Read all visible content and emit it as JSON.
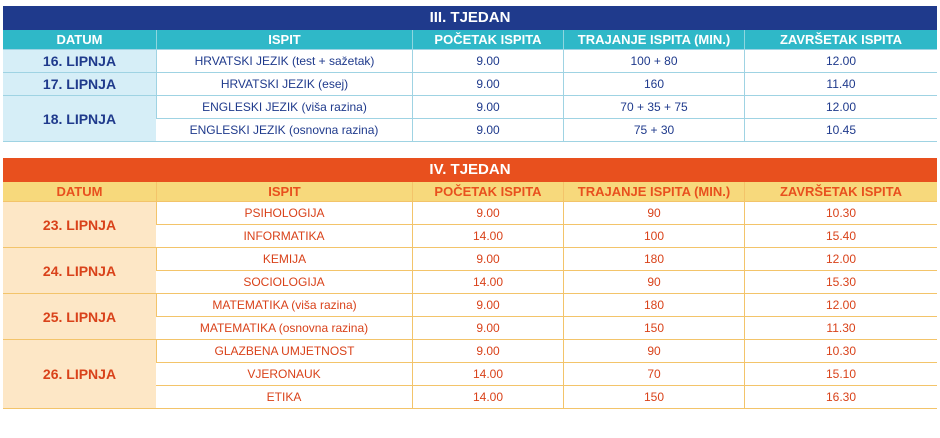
{
  "columns": [
    "DATUM",
    "ISPIT",
    "POČETAK ISPITA",
    "TRAJANJE ISPITA (MIN.)",
    "ZAVRŠETAK ISPITA"
  ],
  "week3": {
    "title": "III. TJEDAN",
    "groups": [
      {
        "date": "16. LIPNJA",
        "rows": [
          {
            "exam": "HRVATSKI JEZIK (test + sažetak)",
            "start": "9.00",
            "duration": "100 + 80",
            "end": "12.00"
          }
        ]
      },
      {
        "date": "17. LIPNJA",
        "rows": [
          {
            "exam": "HRVATSKI JEZIK (esej)",
            "start": "9.00",
            "duration": "160",
            "end": "11.40"
          }
        ]
      },
      {
        "date": "18. LIPNJA",
        "rows": [
          {
            "exam": "ENGLESKI JEZIK (viša razina)",
            "start": "9.00",
            "duration": "70 + 35 + 75",
            "end": "12.00"
          },
          {
            "exam": "ENGLESKI JEZIK (osnovna razina)",
            "start": "9.00",
            "duration": "75 + 30",
            "end": "10.45"
          }
        ]
      }
    ]
  },
  "week4": {
    "title": "IV. TJEDAN",
    "groups": [
      {
        "date": "23. LIPNJA",
        "rows": [
          {
            "exam": "PSIHOLOGIJA",
            "start": "9.00",
            "duration": "90",
            "end": "10.30"
          },
          {
            "exam": "INFORMATIKA",
            "start": "14.00",
            "duration": "100",
            "end": "15.40"
          }
        ]
      },
      {
        "date": "24. LIPNJA",
        "rows": [
          {
            "exam": "KEMIJA",
            "start": "9.00",
            "duration": "180",
            "end": "12.00"
          },
          {
            "exam": "SOCIOLOGIJA",
            "start": "14.00",
            "duration": "90",
            "end": "15.30"
          }
        ]
      },
      {
        "date": "25. LIPNJA",
        "rows": [
          {
            "exam": "MATEMATIKA (viša razina)",
            "start": "9.00",
            "duration": "180",
            "end": "12.00"
          },
          {
            "exam": "MATEMATIKA (osnovna razina)",
            "start": "9.00",
            "duration": "150",
            "end": "11.30"
          }
        ]
      },
      {
        "date": "26. LIPNJA",
        "rows": [
          {
            "exam": "GLAZBENA UMJETNOST",
            "start": "9.00",
            "duration": "90",
            "end": "10.30"
          },
          {
            "exam": "VJERONAUK",
            "start": "14.00",
            "duration": "70",
            "end": "15.10"
          },
          {
            "exam": "ETIKA",
            "start": "14.00",
            "duration": "150",
            "end": "16.30"
          }
        ]
      }
    ]
  }
}
